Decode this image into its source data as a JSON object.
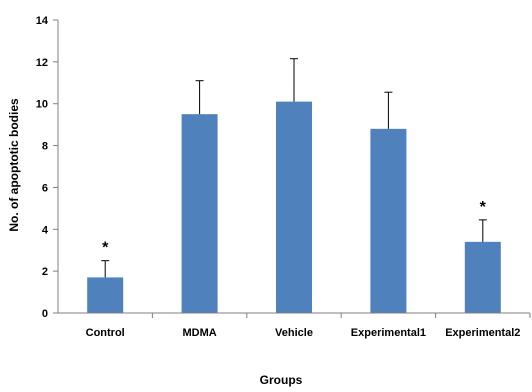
{
  "chart_data": {
    "type": "bar",
    "title": "",
    "xlabel": "Groups",
    "ylabel": "No. of apoptotic bodies",
    "categories": [
      "Control",
      "MDMA",
      "Vehicle",
      "Experimental1",
      "Experimental2"
    ],
    "values": [
      1.7,
      9.5,
      10.1,
      8.8,
      3.4
    ],
    "errors": [
      0.8,
      1.6,
      2.05,
      1.75,
      1.05
    ],
    "annotations": [
      "*",
      "",
      "",
      "",
      "*"
    ],
    "ylim": [
      0,
      14
    ],
    "yticks": [
      0,
      2,
      4,
      6,
      8,
      10,
      12,
      14
    ],
    "grid": false,
    "legend": "none",
    "bar_color": "#4F81BD"
  }
}
